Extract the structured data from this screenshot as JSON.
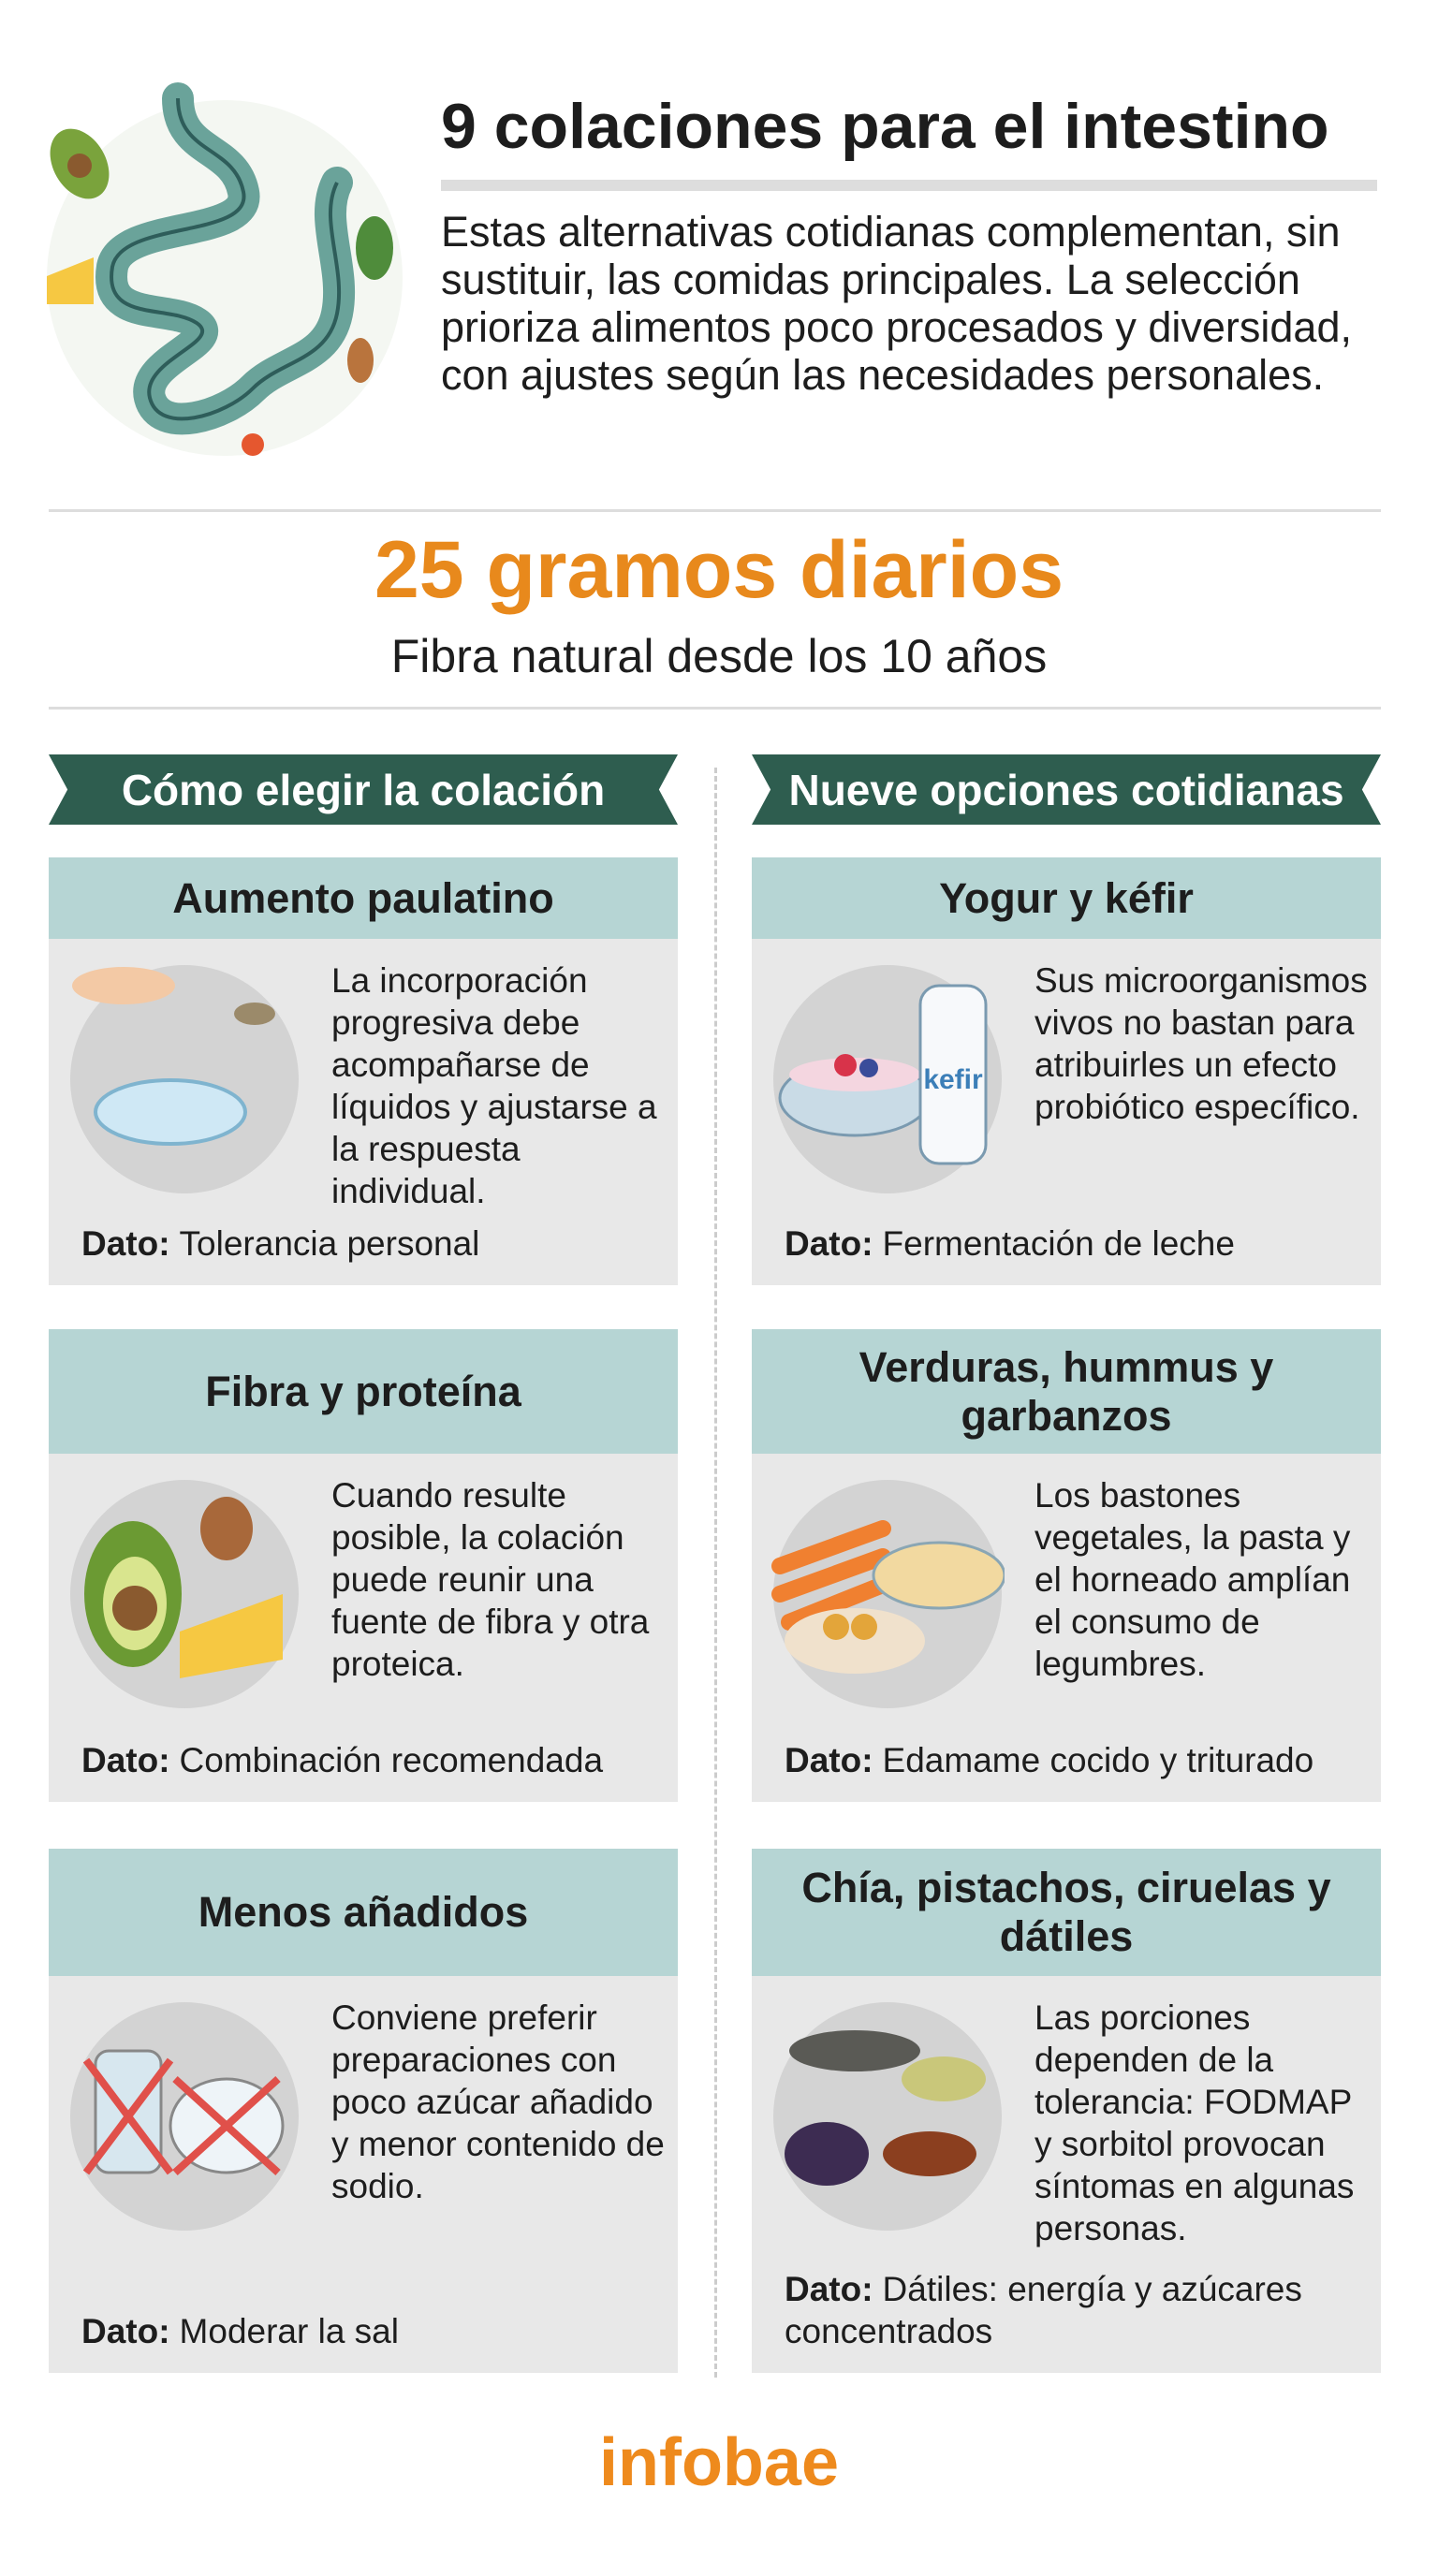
{
  "header": {
    "title": "9 colaciones para el intestino",
    "intro": "Estas alternativas cotidianas complementan, sin sustituir, las comidas principales. La selección prioriza alimentos poco procesados y diversidad, con ajustes según las necesidades personales."
  },
  "highlight": {
    "value": "25 gramos diarios",
    "subtitle": "Fibra natural desde los 10 años"
  },
  "columns": [
    {
      "heading": "Cómo elegir la colación",
      "cards": [
        {
          "title": "Aumento paulatino",
          "text": "La incorporación progresiva debe acompañarse de líquidos y ajustarse a la respuesta individual.",
          "dato_label": "Dato:",
          "dato_text": "Tolerancia personal"
        },
        {
          "title": "Fibra y proteína",
          "text": "Cuando resulte posible, la colación puede reunir una fuente de fibra y otra proteica.",
          "dato_label": "Dato:",
          "dato_text": "Combinación recomendada"
        },
        {
          "title": "Menos añadidos",
          "text": "Conviene preferir preparaciones con poco azúcar añadido y menor contenido de sodio.",
          "dato_label": "Dato:",
          "dato_text": "Moderar la sal"
        }
      ]
    },
    {
      "heading": "Nueve opciones cotidianas",
      "cards": [
        {
          "title": "Yogur y kéfir",
          "text": "Sus microorganismos vivos no bastan para atribuirles un efecto probiótico específico.",
          "dato_label": "Dato:",
          "dato_text": "Fermentación de leche",
          "image_label": "kefir"
        },
        {
          "title": "Verduras, hummus y garbanzos",
          "text": "Los bastones vegetales, la pasta y el horneado amplían el consumo de legumbres.",
          "dato_label": "Dato:",
          "dato_text": "Edamame cocido y triturado"
        },
        {
          "title": "Chía, pistachos, ciruelas y dátiles",
          "text": "Las porciones dependen de la tolerancia: FODMAP y sorbitol provocan síntomas en algunas personas.",
          "dato_label": "Dato:",
          "dato_text": "Dátiles: energía y azúcares concentrados"
        }
      ]
    }
  ],
  "footer": {
    "brand": "infobae"
  }
}
